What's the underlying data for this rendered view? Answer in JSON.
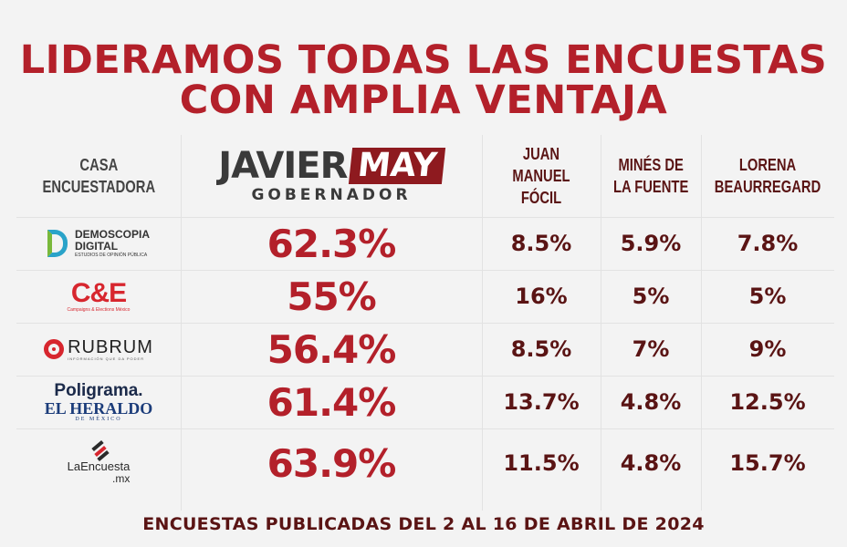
{
  "title_line1": "LIDERAMOS TODAS LAS ENCUESTAS",
  "title_line2": "CON AMPLIA VENTAJA",
  "footer": "ENCUESTAS PUBLICADAS DEL 2 AL 16 DE ABRIL DE 2024",
  "headers": {
    "pollster_line1": "CASA",
    "pollster_line2": "ENCUESTADORA",
    "javier_first": "JAVIER",
    "javier_last": "MAY",
    "javier_role": "GOBERNADOR",
    "juan_line1": "JUAN MANUEL",
    "juan_line2": "FÓCIL",
    "mines_line1": "MINÉS DE",
    "mines_line2": "LA FUENTE",
    "lorena_line1": "LORENA",
    "lorena_line2": "BEAURREGARD"
  },
  "logos": {
    "demoscopia_1": "DEMOSCOPIA",
    "demoscopia_2": "DIGITAL",
    "demoscopia_3": "ESTUDIOS DE OPINIÓN PÚBLICA",
    "ce_1": "C&E",
    "ce_2": "Campaigns & Elections México",
    "rubrum_1": "RUBRUM",
    "rubrum_2": "INFORMACIÓN QUE DA PODER",
    "poligrama_1": "Poligrama.",
    "poligrama_2": "EL HERALDO",
    "poligrama_3": "DE MÉXICO",
    "laencuesta_1": "LaEncuesta",
    "laencuesta_2": ".mx"
  },
  "chart_data": {
    "type": "table",
    "columns": [
      "JAVIER MAY",
      "JUAN MANUEL FÓCIL",
      "MINÉS DE LA FUENTE",
      "LORENA BEAURREGARD"
    ],
    "rows": [
      {
        "pollster": "Demoscopia Digital",
        "values": [
          "62.3%",
          "8.5%",
          "5.9%",
          "7.8%"
        ]
      },
      {
        "pollster": "C&E",
        "values": [
          "55%",
          "16%",
          "5%",
          "5%"
        ]
      },
      {
        "pollster": "Rubrum",
        "values": [
          "56.4%",
          "8.5%",
          "7%",
          "9%"
        ]
      },
      {
        "pollster": "Poligrama / El Heraldo de México",
        "values": [
          "61.4%",
          "13.7%",
          "4.8%",
          "12.5%"
        ]
      },
      {
        "pollster": "LaEncuesta.mx",
        "values": [
          "63.9%",
          "11.5%",
          "4.8%",
          "15.7%"
        ]
      }
    ],
    "accent_color": "#b3202a",
    "secondary_color": "#5a1414"
  }
}
